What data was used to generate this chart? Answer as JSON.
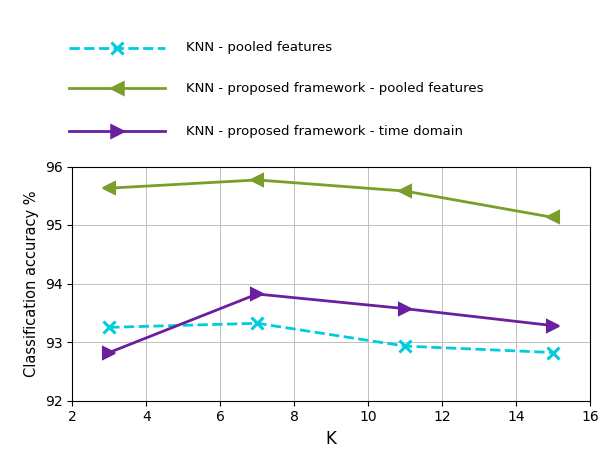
{
  "knn_pooled": {
    "x": [
      3,
      7,
      11,
      15
    ],
    "y": [
      93.25,
      93.32,
      92.93,
      92.82
    ],
    "color": "#00CCDD",
    "linestyle": "--",
    "marker": "x",
    "label": "KNN - pooled features"
  },
  "knn_proposed_pooled": {
    "x": [
      3,
      7,
      11,
      15
    ],
    "y": [
      95.63,
      95.77,
      95.58,
      95.13
    ],
    "color": "#7B9E2B",
    "linestyle": "-",
    "marker": "<",
    "label": "KNN - proposed framework - pooled features"
  },
  "knn_proposed_time": {
    "x": [
      3,
      7,
      11,
      15
    ],
    "y": [
      92.82,
      93.82,
      93.57,
      93.28
    ],
    "color": "#6B1FA0",
    "linestyle": "-",
    "marker": ">",
    "label": "KNN - proposed framework - time domain"
  },
  "xlabel": "K",
  "ylabel": "Classification accuracy %",
  "xlim": [
    2,
    16
  ],
  "ylim": [
    92,
    96
  ],
  "xticks": [
    2,
    4,
    6,
    8,
    10,
    12,
    14,
    16
  ],
  "yticks": [
    92,
    93,
    94,
    95,
    96
  ]
}
